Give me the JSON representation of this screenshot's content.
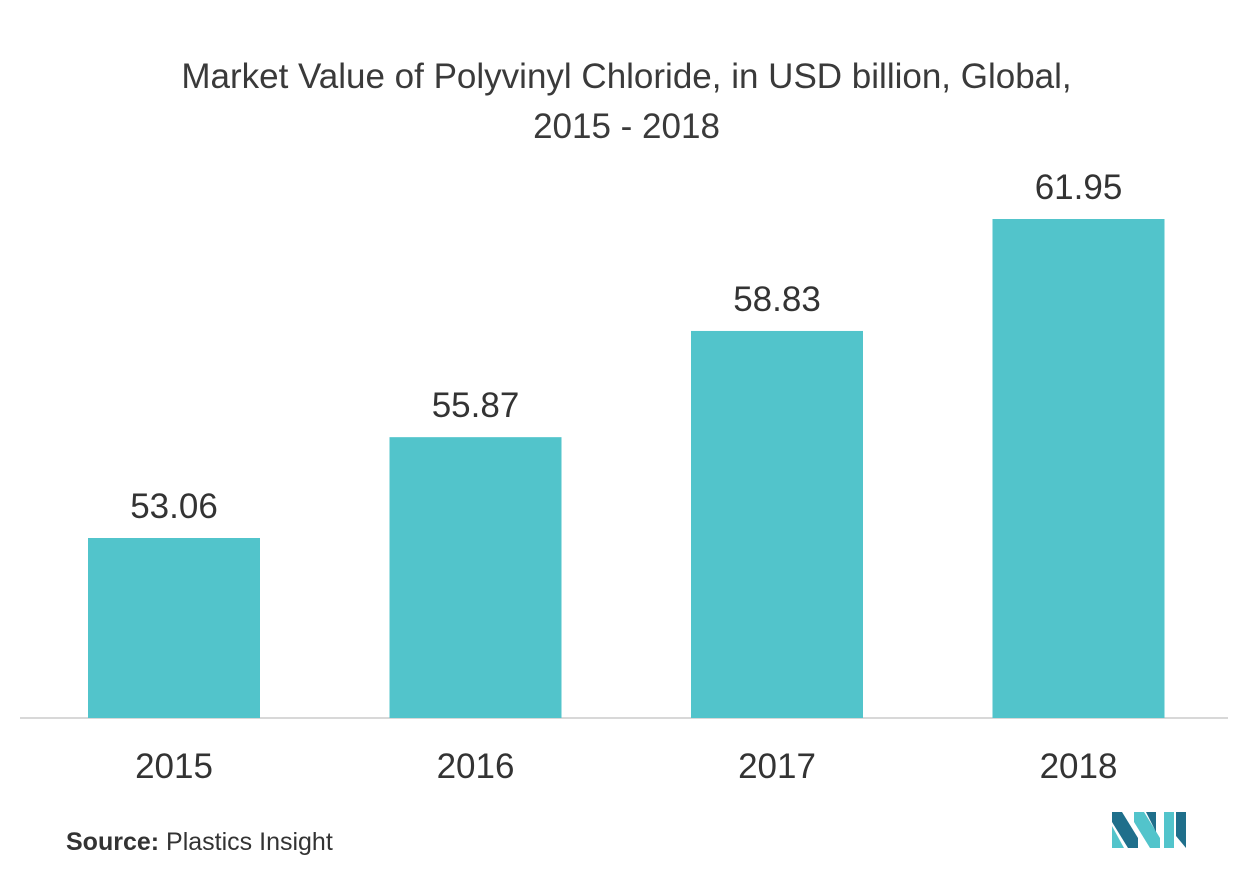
{
  "chart_data": {
    "type": "bar",
    "title_line1": "Market Value of Polyvinyl Chloride, in USD billion, Global,",
    "title_line2": "2015 - 2018",
    "categories": [
      "2015",
      "2016",
      "2017",
      "2018"
    ],
    "values": [
      53.06,
      55.87,
      58.83,
      61.95
    ],
    "value_labels": [
      "53.06",
      "55.87",
      "58.83",
      "61.95"
    ],
    "bar_color": "#52c4cb",
    "axis_color": "#cccccc",
    "grid": false,
    "legend": "none"
  },
  "footer": {
    "source_label": "Source:",
    "source_text": "Plastics Insight"
  },
  "branding": {
    "logo_icon": "mordor-intelligence-logo-icon",
    "logo_color_dark": "#1f6f8b",
    "logo_color_light": "#52c4cb"
  }
}
